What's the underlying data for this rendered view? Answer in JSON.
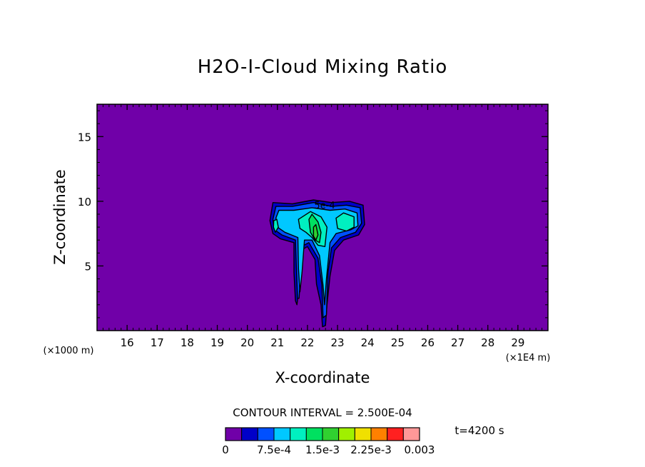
{
  "chart_data": {
    "type": "heatmap",
    "title": "H2O-I-Cloud Mixing Ratio",
    "xlabel": "X-coordinate",
    "ylabel": "Z-coordinate",
    "x_unit_left": "(×1000 m)",
    "x_unit_right": "(×1E4 m)",
    "xlim": [
      150000,
      300000
    ],
    "ylim": [
      0,
      17.5
    ],
    "x_ticks": [
      160000,
      170000,
      180000,
      190000,
      200000,
      210000,
      220000,
      230000,
      240000,
      250000,
      260000,
      270000,
      280000,
      290000
    ],
    "x_tick_labels": [
      "16",
      "17",
      "18",
      "19",
      "20",
      "21",
      "22",
      "23",
      "24",
      "25",
      "26",
      "27",
      "28",
      "29"
    ],
    "y_ticks": [
      5,
      10,
      15
    ],
    "y_tick_labels": [
      "5",
      "10",
      "15"
    ],
    "contour_label": "5e-4",
    "time_label": "t=4200 s",
    "colorbar": {
      "title": "CONTOUR INTERVAL = 2.500E-04",
      "labels": [
        "0",
        "7.5e-4",
        "1.5e-3",
        "2.25e-3",
        "0.003"
      ],
      "label_values": [
        0,
        0.00075,
        0.0015,
        0.00225,
        0.003
      ],
      "colors": [
        "#7000a8",
        "#0000c8",
        "#0050ff",
        "#00c8ff",
        "#00f0c0",
        "#00e060",
        "#30d030",
        "#a0f000",
        "#f0e000",
        "#ff8000",
        "#ff2020",
        "#ff9898"
      ]
    },
    "regions": [
      {
        "level": 0,
        "color": "#0000c8",
        "points": [
          [
            208500,
            9.9
          ],
          [
            215000,
            9.8
          ],
          [
            222000,
            10.1
          ],
          [
            228000,
            9.9
          ],
          [
            234000,
            10.0
          ],
          [
            238500,
            9.7
          ],
          [
            239000,
            8.2
          ],
          [
            237000,
            7.4
          ],
          [
            232000,
            7.0
          ],
          [
            229000,
            6.2
          ],
          [
            227500,
            4.2
          ],
          [
            226500,
            2.0
          ],
          [
            226000,
            0.4
          ],
          [
            225000,
            0.3
          ],
          [
            224500,
            2.0
          ],
          [
            223000,
            3.6
          ],
          [
            222500,
            5.5
          ],
          [
            220000,
            6.5
          ],
          [
            218500,
            6.3
          ],
          [
            217500,
            5.0
          ],
          [
            217000,
            3.0
          ],
          [
            216500,
            2.0
          ],
          [
            216000,
            2.3
          ],
          [
            215500,
            4.5
          ],
          [
            215500,
            6.8
          ],
          [
            211000,
            7.1
          ],
          [
            208500,
            7.5
          ],
          [
            207500,
            8.5
          ]
        ]
      },
      {
        "level": 1,
        "color": "#0050ff",
        "points": [
          [
            209500,
            9.6
          ],
          [
            215000,
            9.6
          ],
          [
            222000,
            9.9
          ],
          [
            228000,
            9.6
          ],
          [
            233000,
            9.7
          ],
          [
            237500,
            9.5
          ],
          [
            238000,
            8.3
          ],
          [
            236000,
            7.6
          ],
          [
            231000,
            7.2
          ],
          [
            228000,
            6.4
          ],
          [
            226800,
            4.5
          ],
          [
            226300,
            1.2
          ],
          [
            225200,
            1.0
          ],
          [
            224800,
            3.5
          ],
          [
            223500,
            5.6
          ],
          [
            220500,
            6.8
          ],
          [
            218800,
            6.6
          ],
          [
            217800,
            4.5
          ],
          [
            217200,
            2.5
          ],
          [
            216700,
            2.5
          ],
          [
            216300,
            5.0
          ],
          [
            216000,
            7.0
          ],
          [
            211500,
            7.4
          ],
          [
            209000,
            7.8
          ],
          [
            208500,
            8.6
          ]
        ]
      },
      {
        "level": 2,
        "color": "#00c8ff",
        "points": [
          [
            210500,
            9.3
          ],
          [
            215500,
            9.3
          ],
          [
            221500,
            9.5
          ],
          [
            227500,
            9.3
          ],
          [
            232500,
            9.4
          ],
          [
            236500,
            9.1
          ],
          [
            236800,
            8.1
          ],
          [
            234500,
            7.8
          ],
          [
            229500,
            7.5
          ],
          [
            227500,
            6.8
          ],
          [
            226300,
            4.0
          ],
          [
            225700,
            2.0
          ],
          [
            225200,
            3.5
          ],
          [
            224000,
            5.8
          ],
          [
            221500,
            7.0
          ],
          [
            219000,
            7.0
          ],
          [
            218200,
            4.5
          ],
          [
            217500,
            3.0
          ],
          [
            217000,
            4.8
          ],
          [
            216800,
            7.2
          ],
          [
            212500,
            7.6
          ],
          [
            210000,
            8.0
          ],
          [
            209500,
            8.7
          ]
        ]
      },
      {
        "level": 3,
        "color": "#00f0c0",
        "points": [
          [
            217000,
            8.6
          ],
          [
            221000,
            9.2
          ],
          [
            224500,
            8.8
          ],
          [
            226500,
            8.0
          ],
          [
            225800,
            6.5
          ],
          [
            223500,
            6.6
          ],
          [
            221500,
            7.2
          ],
          [
            219500,
            7.6
          ],
          [
            217500,
            7.9
          ]
        ]
      },
      {
        "level": 3,
        "color": "#00f0c0",
        "points": [
          [
            229500,
            8.7
          ],
          [
            232000,
            9.1
          ],
          [
            235500,
            8.8
          ],
          [
            235500,
            8.0
          ],
          [
            233000,
            7.7
          ],
          [
            230000,
            7.9
          ]
        ]
      },
      {
        "level": 3,
        "color": "#00f0c0",
        "points": [
          [
            208800,
            8.5
          ],
          [
            209800,
            8.6
          ],
          [
            210300,
            8.0
          ],
          [
            209300,
            7.6
          ],
          [
            208700,
            8.0
          ]
        ]
      },
      {
        "level": 4,
        "color": "#00e060",
        "points": [
          [
            220500,
            8.6
          ],
          [
            221500,
            9.0
          ],
          [
            223500,
            8.4
          ],
          [
            224500,
            7.6
          ],
          [
            224000,
            6.8
          ],
          [
            222500,
            7.0
          ],
          [
            221000,
            7.6
          ]
        ]
      },
      {
        "level": 5,
        "color": "#30d030",
        "points": [
          [
            222000,
            8.0
          ],
          [
            222800,
            8.2
          ],
          [
            223500,
            7.4
          ],
          [
            222800,
            7.0
          ],
          [
            222000,
            7.3
          ]
        ]
      }
    ]
  }
}
